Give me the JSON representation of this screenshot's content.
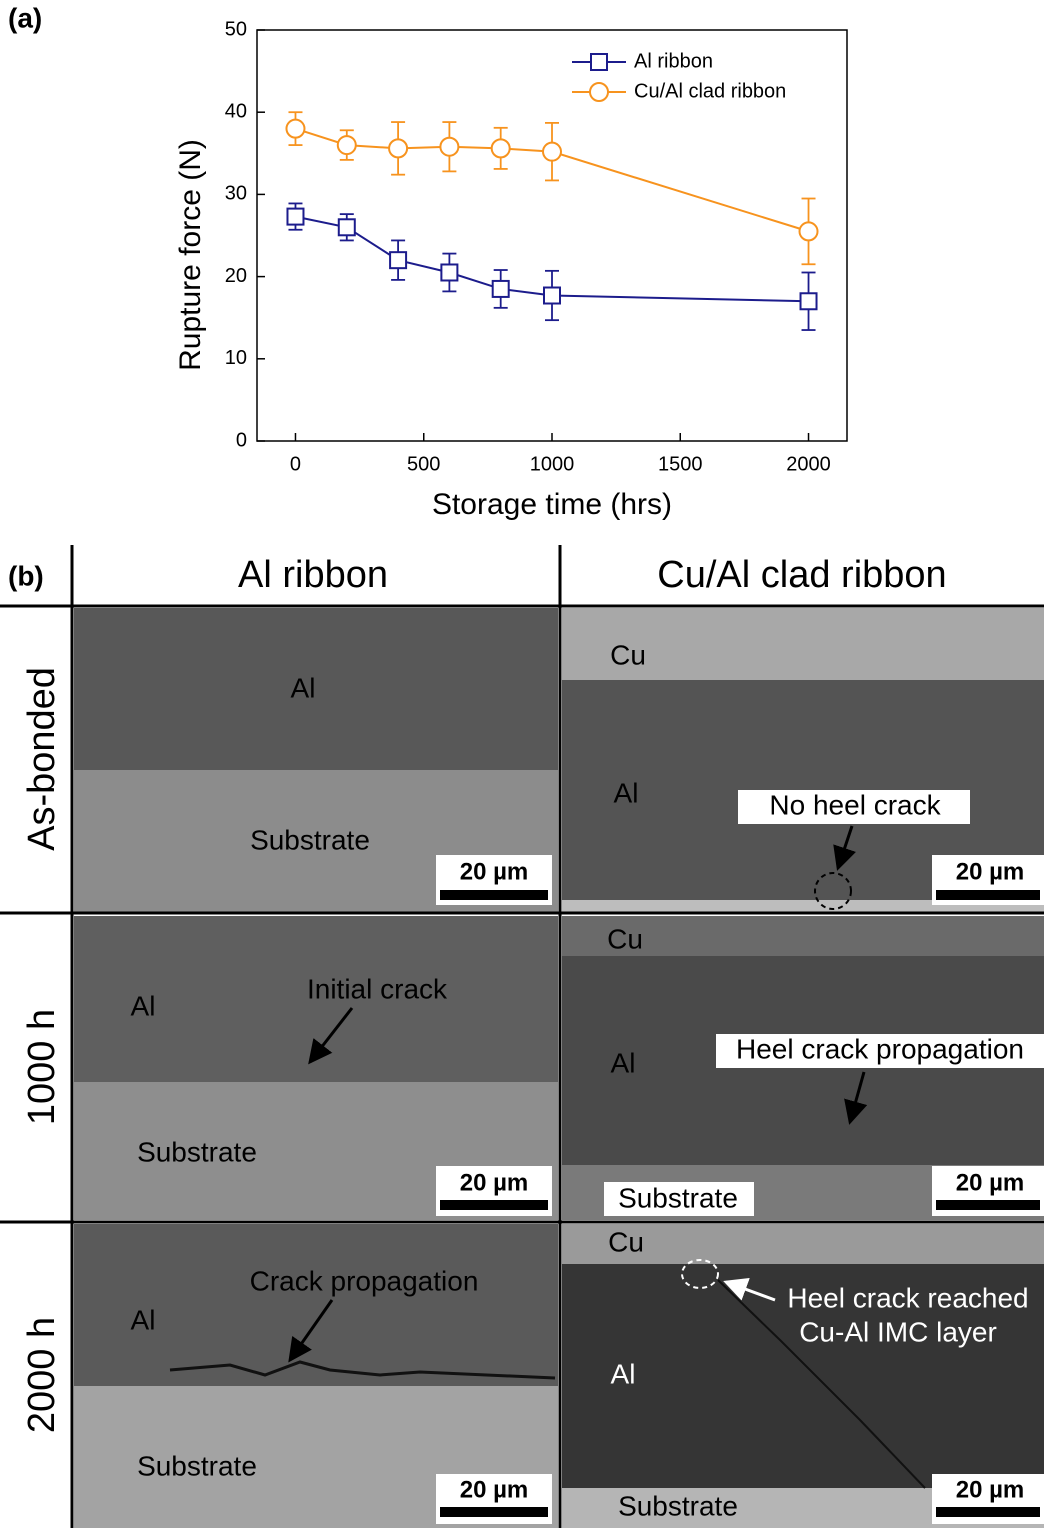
{
  "chart_data": {
    "type": "line",
    "panel_label": "(a)",
    "x_label": "Storage time (hrs)",
    "y_label": "Rupture force (N)",
    "x": [
      0,
      200,
      400,
      600,
      800,
      1000,
      2000
    ],
    "series": [
      {
        "name": "Al ribbon",
        "color": "#1c1c8c",
        "marker": "square",
        "values": [
          27.3,
          26,
          22,
          20.5,
          18.5,
          17.7,
          17
        ],
        "errors": [
          1.6,
          1.6,
          2.4,
          2.3,
          2.3,
          3,
          3.5
        ]
      },
      {
        "name": "Cu/Al clad ribbon",
        "color": "#f7931e",
        "marker": "circle",
        "values": [
          38,
          36,
          35.6,
          35.8,
          35.6,
          35.2,
          25.5
        ],
        "errors": [
          2,
          1.8,
          3.2,
          3,
          2.5,
          3.5,
          4
        ]
      }
    ],
    "xlim": [
      -150,
      2150
    ],
    "ylim": [
      0,
      50
    ],
    "xticks": [
      0,
      500,
      1000,
      1500,
      2000
    ],
    "yticks": [
      0,
      10,
      20,
      30,
      40,
      50
    ],
    "legend": "upper right"
  },
  "panel_b": {
    "label": "(b)",
    "columns": [
      "Al ribbon",
      "Cu/Al clad ribbon"
    ],
    "rows": [
      "As-bonded",
      "1000 h",
      "2000 h"
    ],
    "cells": [
      [
        {
          "labels": [
            "Al",
            "Substrate"
          ],
          "scale_bar": "20 µm"
        },
        {
          "labels": [
            "Cu",
            "Al",
            "No heel crack"
          ],
          "scale_bar": "20 µm"
        }
      ],
      [
        {
          "labels": [
            "Al",
            "Initial crack",
            "Substrate"
          ],
          "scale_bar": "20 µm"
        },
        {
          "labels": [
            "Cu",
            "Al",
            "Heel crack propagation",
            "Substrate"
          ],
          "scale_bar": "20 µm"
        }
      ],
      [
        {
          "labels": [
            "Al",
            "Crack propagation",
            "Substrate"
          ],
          "scale_bar": "20 µm"
        },
        {
          "labels": [
            "Cu",
            "Heel crack reached",
            "Cu-Al IMC layer",
            "Al",
            "Substrate"
          ],
          "scale_bar": "20 µm"
        }
      ]
    ]
  }
}
